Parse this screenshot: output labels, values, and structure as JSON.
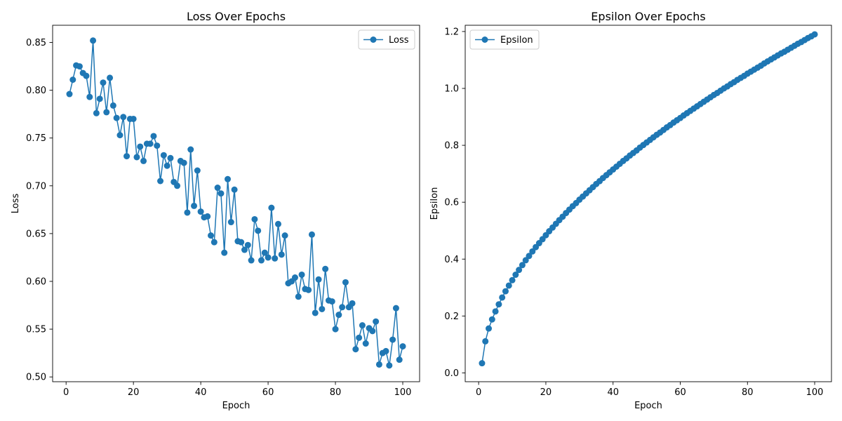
{
  "chart_data": [
    {
      "type": "line",
      "title": "Loss Over Epochs",
      "xlabel": "Epoch",
      "ylabel": "Loss",
      "xlim": [
        -4,
        105
      ],
      "ylim": [
        0.495,
        0.868
      ],
      "xticks": [
        0,
        20,
        40,
        60,
        80,
        100
      ],
      "xtick_labels": [
        "0",
        "20",
        "40",
        "60",
        "80",
        "100"
      ],
      "yticks": [
        0.5,
        0.55,
        0.6,
        0.65,
        0.7,
        0.75,
        0.8,
        0.85
      ],
      "ytick_labels": [
        "0.50",
        "0.55",
        "0.60",
        "0.65",
        "0.70",
        "0.75",
        "0.80",
        "0.85"
      ],
      "grid": false,
      "legend_position": "top-right",
      "color": "#1f77b4",
      "series": [
        {
          "name": "Loss",
          "x": [
            1,
            2,
            3,
            4,
            5,
            6,
            7,
            8,
            9,
            10,
            11,
            12,
            13,
            14,
            15,
            16,
            17,
            18,
            19,
            20,
            21,
            22,
            23,
            24,
            25,
            26,
            27,
            28,
            29,
            30,
            31,
            32,
            33,
            34,
            35,
            36,
            37,
            38,
            39,
            40,
            41,
            42,
            43,
            44,
            45,
            46,
            47,
            48,
            49,
            50,
            51,
            52,
            53,
            54,
            55,
            56,
            57,
            58,
            59,
            60,
            61,
            62,
            63,
            64,
            65,
            66,
            67,
            68,
            69,
            70,
            71,
            72,
            73,
            74,
            75,
            76,
            77,
            78,
            79,
            80,
            81,
            82,
            83,
            84,
            85,
            86,
            87,
            88,
            89,
            90,
            91,
            92,
            93,
            94,
            95,
            96,
            97,
            98,
            99,
            100
          ],
          "y": [
            0.796,
            0.811,
            0.826,
            0.825,
            0.818,
            0.815,
            0.793,
            0.852,
            0.776,
            0.791,
            0.808,
            0.777,
            0.813,
            0.784,
            0.771,
            0.753,
            0.772,
            0.731,
            0.77,
            0.77,
            0.73,
            0.741,
            0.726,
            0.744,
            0.744,
            0.752,
            0.742,
            0.705,
            0.732,
            0.721,
            0.729,
            0.704,
            0.7,
            0.726,
            0.724,
            0.672,
            0.738,
            0.679,
            0.716,
            0.673,
            0.667,
            0.668,
            0.648,
            0.641,
            0.698,
            0.692,
            0.63,
            0.707,
            0.662,
            0.696,
            0.642,
            0.641,
            0.633,
            0.638,
            0.622,
            0.665,
            0.653,
            0.622,
            0.63,
            0.625,
            0.677,
            0.624,
            0.66,
            0.628,
            0.648,
            0.598,
            0.6,
            0.604,
            0.584,
            0.607,
            0.592,
            0.591,
            0.649,
            0.567,
            0.602,
            0.571,
            0.613,
            0.58,
            0.579,
            0.55,
            0.565,
            0.573,
            0.599,
            0.573,
            0.577,
            0.529,
            0.541,
            0.554,
            0.535,
            0.551,
            0.548,
            0.558,
            0.513,
            0.525,
            0.527,
            0.512,
            0.539,
            0.572,
            0.518,
            0.532
          ]
        }
      ]
    },
    {
      "type": "line",
      "title": "Epsilon Over Epochs",
      "xlabel": "Epoch",
      "ylabel": "Epsilon",
      "xlim": [
        -4,
        105
      ],
      "ylim": [
        -0.031,
        1.222
      ],
      "xticks": [
        0,
        20,
        40,
        60,
        80,
        100
      ],
      "xtick_labels": [
        "0",
        "20",
        "40",
        "60",
        "80",
        "100"
      ],
      "yticks": [
        0.0,
        0.2,
        0.4,
        0.6,
        0.8,
        1.0,
        1.2
      ],
      "ytick_labels": [
        "0.0",
        "0.2",
        "0.4",
        "0.6",
        "0.8",
        "1.0",
        "1.2"
      ],
      "grid": false,
      "legend_position": "top-left",
      "color": "#1f77b4",
      "series": [
        {
          "name": "Epsilon",
          "x": [
            1,
            2,
            3,
            4,
            5,
            6,
            7,
            8,
            9,
            10,
            11,
            12,
            13,
            14,
            15,
            16,
            17,
            18,
            19,
            20,
            21,
            22,
            23,
            24,
            25,
            26,
            27,
            28,
            29,
            30,
            31,
            32,
            33,
            34,
            35,
            36,
            37,
            38,
            39,
            40,
            41,
            42,
            43,
            44,
            45,
            46,
            47,
            48,
            49,
            50,
            51,
            52,
            53,
            54,
            55,
            56,
            57,
            58,
            59,
            60,
            61,
            62,
            63,
            64,
            65,
            66,
            67,
            68,
            69,
            70,
            71,
            72,
            73,
            74,
            75,
            76,
            77,
            78,
            79,
            80,
            81,
            82,
            83,
            84,
            85,
            86,
            87,
            88,
            89,
            90,
            91,
            92,
            93,
            94,
            95,
            96,
            97,
            98,
            99,
            100
          ],
          "y": [
            0.034,
            0.111,
            0.156,
            0.188,
            0.216,
            0.241,
            0.265,
            0.287,
            0.307,
            0.326,
            0.345,
            0.362,
            0.379,
            0.396,
            0.411,
            0.427,
            0.442,
            0.456,
            0.47,
            0.484,
            0.498,
            0.511,
            0.524,
            0.537,
            0.549,
            0.562,
            0.574,
            0.586,
            0.597,
            0.609,
            0.62,
            0.631,
            0.642,
            0.653,
            0.664,
            0.674,
            0.685,
            0.695,
            0.705,
            0.715,
            0.725,
            0.735,
            0.745,
            0.754,
            0.764,
            0.773,
            0.782,
            0.792,
            0.801,
            0.81,
            0.819,
            0.828,
            0.837,
            0.845,
            0.854,
            0.863,
            0.871,
            0.88,
            0.888,
            0.896,
            0.905,
            0.913,
            0.921,
            0.929,
            0.937,
            0.945,
            0.953,
            0.961,
            0.969,
            0.977,
            0.984,
            0.992,
            1.0,
            1.007,
            1.015,
            1.022,
            1.03,
            1.037,
            1.044,
            1.052,
            1.059,
            1.066,
            1.073,
            1.08,
            1.088,
            1.095,
            1.102,
            1.109,
            1.116,
            1.123,
            1.129,
            1.136,
            1.143,
            1.15,
            1.157,
            1.163,
            1.17,
            1.177,
            1.183,
            1.19
          ]
        }
      ]
    }
  ]
}
